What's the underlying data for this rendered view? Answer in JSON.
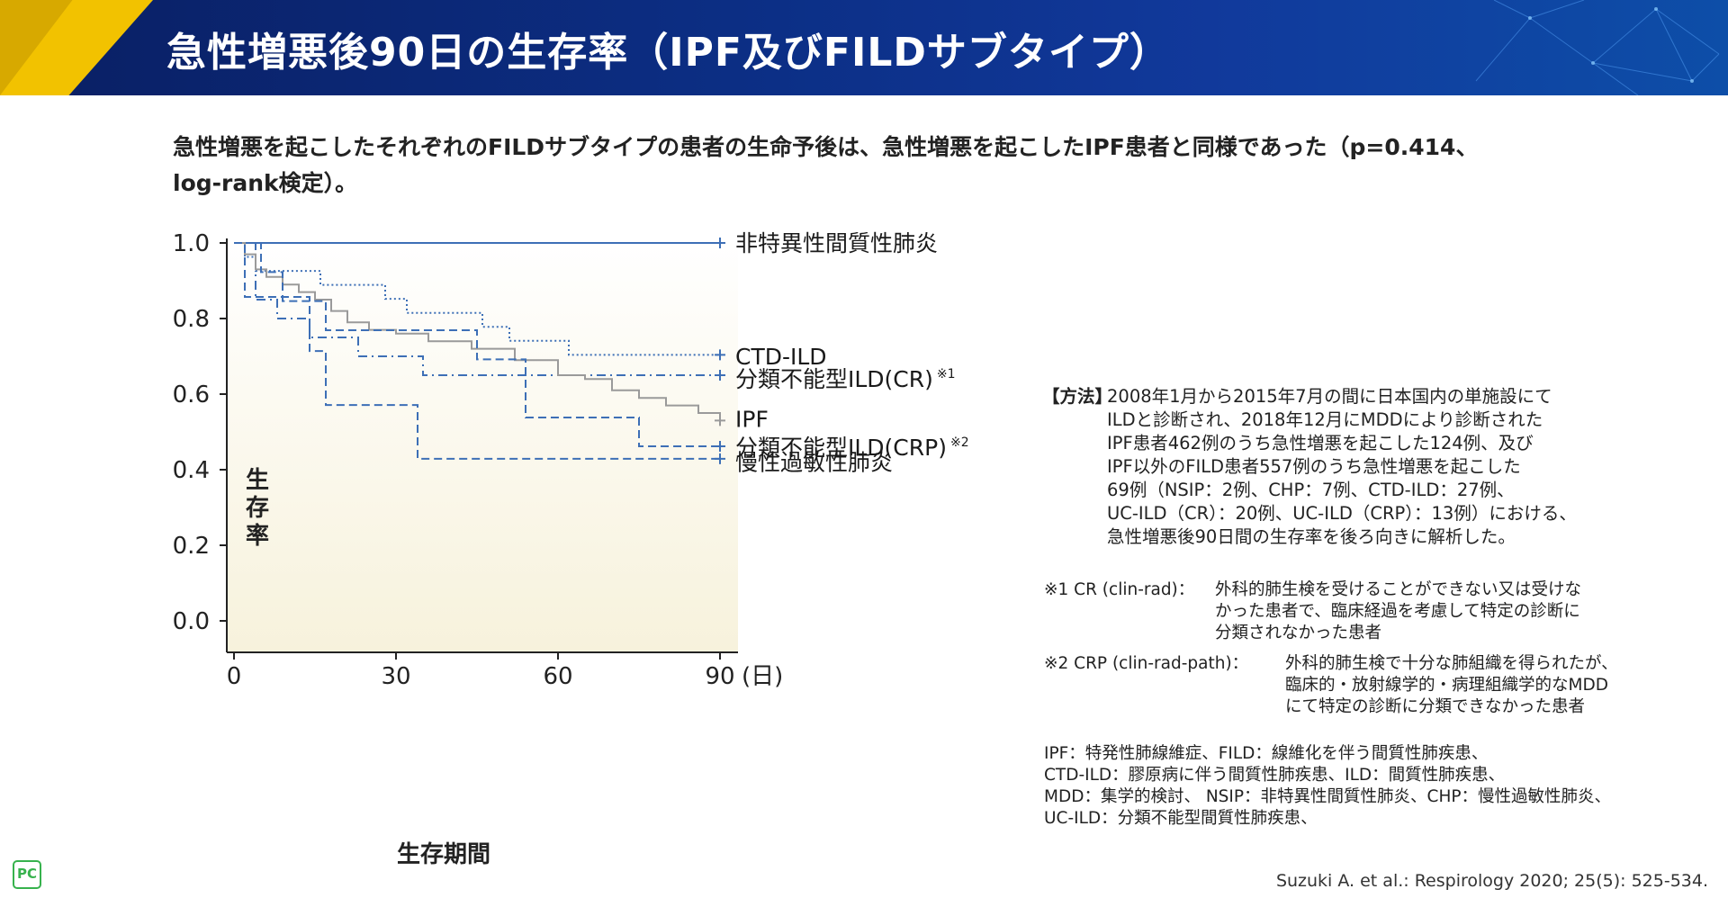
{
  "page_title": "急性増悪後90日の生存率（IPF及びFILDサブタイプ）",
  "lead_text": "急性増悪を起こしたそれぞれのFILDサブタイプの患者の生命予後は、急性増悪を起こしたIPF患者と同様であった（p=0.414、log-rank検定）。",
  "chart_data": {
    "type": "line",
    "subtype": "kaplan-meier step",
    "title": "",
    "xlabel": "生存期間",
    "ylabel": "生存率",
    "x_unit": "(日)",
    "xlim": [
      0,
      90
    ],
    "ylim": [
      0,
      1.0
    ],
    "x_ticks": [
      "0",
      "30",
      "60",
      "90"
    ],
    "y_ticks": [
      "0.0",
      "0.2",
      "0.4",
      "0.6",
      "0.8",
      "1.0"
    ],
    "grid": false,
    "legend": "inline labels at right end of each curve",
    "series": [
      {
        "name": "非特異性間質性肺炎",
        "color": "#3d6fb6",
        "dash": "solid",
        "points": [
          [
            0,
            1.0
          ],
          [
            90,
            1.0
          ]
        ]
      },
      {
        "name": "CTD-ILD",
        "color": "#3d6fb6",
        "dash": "dotted",
        "points": [
          [
            0,
            1.0
          ],
          [
            2,
            0.963
          ],
          [
            4,
            0.926
          ],
          [
            16,
            0.889
          ],
          [
            28,
            0.852
          ],
          [
            32,
            0.815
          ],
          [
            46,
            0.778
          ],
          [
            51,
            0.741
          ],
          [
            62,
            0.704
          ],
          [
            90,
            0.704
          ]
        ]
      },
      {
        "name": "分類不能型ILD(CR)",
        "note_mark": "※1",
        "color": "#3d6fb6",
        "dash": "dashdot",
        "points": [
          [
            0,
            1.0
          ],
          [
            4,
            0.85
          ],
          [
            8,
            0.8
          ],
          [
            14,
            0.75
          ],
          [
            23,
            0.7
          ],
          [
            35,
            0.65
          ],
          [
            90,
            0.65
          ]
        ]
      },
      {
        "name": "IPF",
        "color": "#9a9a9a",
        "dash": "solid",
        "points": [
          [
            0,
            1.0
          ],
          [
            2,
            0.97
          ],
          [
            4,
            0.93
          ],
          [
            6,
            0.91
          ],
          [
            9,
            0.89
          ],
          [
            12,
            0.87
          ],
          [
            15,
            0.85
          ],
          [
            18,
            0.82
          ],
          [
            21,
            0.79
          ],
          [
            25,
            0.77
          ],
          [
            30,
            0.76
          ],
          [
            36,
            0.74
          ],
          [
            44,
            0.72
          ],
          [
            52,
            0.69
          ],
          [
            60,
            0.65
          ],
          [
            65,
            0.64
          ],
          [
            70,
            0.61
          ],
          [
            75,
            0.59
          ],
          [
            80,
            0.57
          ],
          [
            86,
            0.55
          ],
          [
            90,
            0.53
          ]
        ]
      },
      {
        "name": "分類不能型ILD(CRP)",
        "note_mark": "※2",
        "color": "#3d6fb6",
        "dash": "dashed",
        "points": [
          [
            0,
            1.0
          ],
          [
            5,
            0.923
          ],
          [
            9,
            0.846
          ],
          [
            17,
            0.769
          ],
          [
            45,
            0.692
          ],
          [
            54,
            0.538
          ],
          [
            75,
            0.462
          ],
          [
            90,
            0.462
          ]
        ]
      },
      {
        "name": "慢性過敏性肺炎",
        "color": "#3d6fb6",
        "dash": "dashed",
        "points": [
          [
            0,
            1.0
          ],
          [
            2,
            0.857
          ],
          [
            14,
            0.714
          ],
          [
            17,
            0.571
          ],
          [
            34,
            0.429
          ],
          [
            90,
            0.429
          ]
        ]
      }
    ]
  },
  "methods": {
    "heading": "【方法】",
    "text": "2008年1月から2015年7月の間に日本国内の単施設にて\nILDと診断され、2018年12月にMDDにより診断された\nIPF患者462例のうち急性増悪を起こした124例、及び\nIPF以外のFILD患者557例のうち急性増悪を起こした\n69例（NSIP：2例、CHP：7例、CTD-ILD：27例、\nUC-ILD（CR）：20例、UC-ILD（CRP）：13例）における、\n急性増悪後90日間の生存率を後ろ向きに解析した。"
  },
  "notes": [
    {
      "mark": "※1 CR (clin-rad)：",
      "text": "外科的肺生検を受けることができない又は受けな\nかった患者で、臨床経過を考慮して特定の診断に\n分類されなかった患者"
    },
    {
      "mark": "※2 CRP (clin-rad-path)：",
      "text": "外科的肺生検で十分な肺組織を得られたが、\n臨床的・放射線学的・病理組織学的なMDD\nにて特定の診断に分類できなかった患者"
    }
  ],
  "abbreviations": "IPF：特発性肺線維症、FILD：線維化を伴う間質性肺疾患、\nCTD-ILD：膠原病に伴う間質性肺疾患、ILD：間質性肺疾患、\nMDD：集学的検討、 NSIP：非特異性間質性肺炎、CHP：慢性過敏性肺炎、\nUC-ILD：分類不能型間質性肺疾患、",
  "citation": "Suzuki A. et al.: Respirology 2020; 25(5): 525-534.",
  "logo_text": "PC",
  "colors": {
    "header": "#0c2f86",
    "accent_gold": "#f2c200",
    "series_blue": "#3d6fb6",
    "series_gray": "#9a9a9a",
    "plot_bg_bottom": "#f7f2dc"
  }
}
